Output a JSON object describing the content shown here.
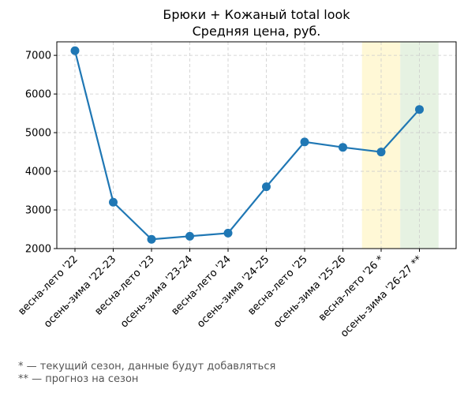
{
  "chart_data": {
    "type": "line",
    "title": "Брюки + Кожаный total look",
    "subtitle": "Средняя цена, руб.",
    "xlabel": "",
    "ylabel": "",
    "categories": [
      "весна-лето '22",
      "осень-зима '22-23",
      "весна-лето '23",
      "осень-зима '23-24",
      "весна-лето '24",
      "осень-зима '24-25",
      "весна-лето '25",
      "осень-зима '25-26",
      "весна-лето '26 *",
      "осень-зима '26-27 **"
    ],
    "series": [
      {
        "name": "",
        "values": [
          7120,
          3200,
          2240,
          2320,
          2400,
          3600,
          4760,
          4620,
          4500,
          5600
        ]
      }
    ],
    "ylim": [
      2000,
      7350
    ],
    "yticks": [
      2000,
      3000,
      4000,
      5000,
      6000,
      7000
    ],
    "grid": true,
    "line_color": "#1f77b4",
    "highlights": [
      {
        "category_index": 8,
        "color": "#fff8d6"
      },
      {
        "category_index": 9,
        "color": "#e6f2e2"
      }
    ]
  },
  "footnotes": [
    "* — текущий сезон, данные будут добавляться",
    "** — прогноз на сезон"
  ]
}
